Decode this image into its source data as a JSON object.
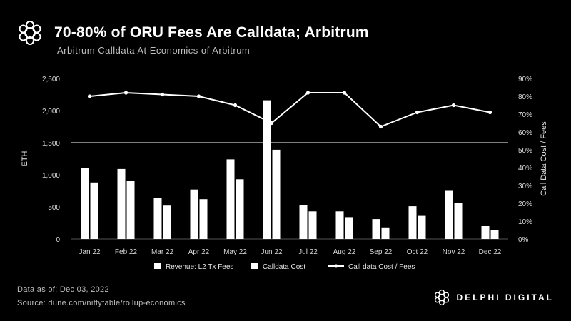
{
  "header": {
    "title": "70-80% of ORU Fees Are Calldata; Arbitrum",
    "subtitle": "Arbitrum Calldata At Economics of Arbitrum"
  },
  "footer": {
    "date_note": "Data as of: Dec 03, 2022",
    "source": "Source: dune.com/niftytable/rollup-economics"
  },
  "brand": {
    "name": "DELPHI DIGITAL"
  },
  "colors": {
    "background": "#000000",
    "bars": "#ffffff",
    "line": "#ffffff"
  },
  "chart_data": {
    "type": "bar",
    "categories": [
      "Jan 22",
      "Feb 22",
      "Mar 22",
      "Apr 22",
      "May 22",
      "Jun 22",
      "Jul 22",
      "Aug 22",
      "Sep 22",
      "Oct 22",
      "Nov 22",
      "Dec 22"
    ],
    "series": [
      {
        "name": "Revenue: L2 Tx Fees",
        "type": "bar",
        "axis": "left",
        "values": [
          1110,
          1090,
          640,
          770,
          1240,
          2160,
          530,
          430,
          310,
          510,
          750,
          200
        ]
      },
      {
        "name": "Calldata Cost",
        "type": "bar",
        "axis": "left",
        "values": [
          880,
          900,
          520,
          620,
          930,
          1390,
          430,
          340,
          180,
          360,
          560,
          140
        ]
      },
      {
        "name": "Call data Cost / Fees",
        "type": "line",
        "axis": "right",
        "values": [
          0.8,
          0.82,
          0.81,
          0.8,
          0.75,
          0.65,
          0.82,
          0.82,
          0.63,
          0.71,
          0.75,
          0.71
        ]
      }
    ],
    "ylabel": "ETH",
    "ylabel_right": "Call Data Cost / Fees",
    "ylim": [
      0,
      2500
    ],
    "yticks": [
      0,
      500,
      1000,
      1500,
      2000,
      2500
    ],
    "ytick_labels": [
      "0",
      "500",
      "1,000",
      "1,500",
      "2,000",
      "2,500"
    ],
    "ylim_right": [
      0,
      0.9
    ],
    "yticks_right": [
      0,
      0.1,
      0.2,
      0.3,
      0.4,
      0.5,
      0.6,
      0.7,
      0.8,
      0.9
    ],
    "ytick_labels_right": [
      "0%",
      "10%",
      "20%",
      "30%",
      "40%",
      "50%",
      "60%",
      "70%",
      "80%",
      "90%"
    ],
    "reference_line": 1500,
    "legend_position": "bottom",
    "grid": false
  }
}
